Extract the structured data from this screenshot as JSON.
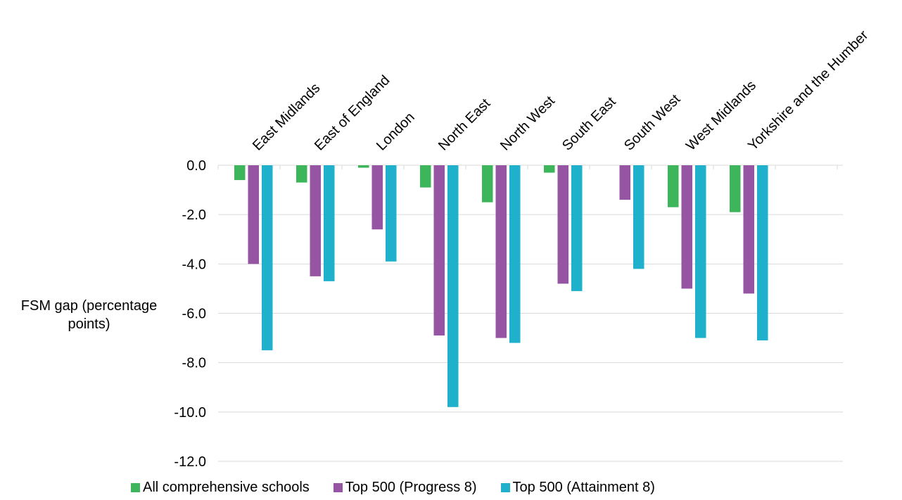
{
  "chart_data": {
    "type": "bar",
    "title": "",
    "xlabel": "",
    "ylabel": "FSM gap (percentage points)",
    "ylim": [
      -12,
      0
    ],
    "yticks": [
      "0.0",
      "-2.0",
      "-4.0",
      "-6.0",
      "-8.0",
      "-10.0",
      "-12.0"
    ],
    "grid": true,
    "legend_position": "bottom",
    "category_axis_position": "top",
    "categories": [
      "East Midlands",
      "East of England",
      "London",
      "North East",
      "North West",
      "South East",
      "South West",
      "West Midlands",
      "Yorkshire and the Humber"
    ],
    "series": [
      {
        "name": "All comprehensive schools",
        "color": "#3cb55b",
        "values": [
          -0.6,
          -0.7,
          -0.1,
          -0.9,
          -1.5,
          -0.3,
          0.0,
          -1.7,
          -1.9
        ]
      },
      {
        "name": "Top 500 (Progress 8)",
        "color": "#9555a3",
        "values": [
          -4.0,
          -4.5,
          -2.6,
          -6.9,
          -7.0,
          -4.8,
          -1.4,
          -5.0,
          -5.2
        ]
      },
      {
        "name": "Top 500 (Attainment 8)",
        "color": "#1fb0cc",
        "values": [
          -7.5,
          -4.7,
          -3.9,
          -9.8,
          -7.2,
          -5.1,
          -4.2,
          -7.0,
          -7.1
        ]
      }
    ]
  }
}
